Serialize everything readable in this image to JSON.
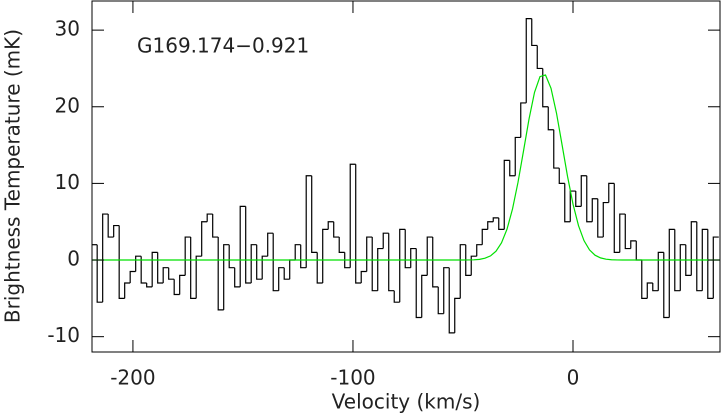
{
  "chart_data": {
    "type": "step",
    "annotation": "G169.174−0.921",
    "x_label": "Velocity (km/s)",
    "y_label": "Brightness Temperature (mK)",
    "xlim": [
      -218.6,
      66.8
    ],
    "ylim": [
      -12,
      33.8
    ],
    "xticks": [
      -200,
      -100,
      0
    ],
    "yticks": [
      -10,
      0,
      10,
      20,
      30
    ],
    "series": [
      {
        "type": "step",
        "color": "#000000",
        "x": [
          -217.5,
          -215,
          -212.5,
          -210,
          -207.5,
          -205,
          -202.5,
          -200,
          -197.5,
          -195,
          -192.5,
          -190,
          -187.5,
          -185,
          -182.5,
          -180,
          -177.5,
          -175,
          -172.5,
          -170,
          -167.5,
          -165,
          -162.5,
          -160,
          -157.5,
          -155,
          -152.5,
          -150,
          -147.5,
          -145,
          -142.5,
          -140,
          -137.5,
          -135,
          -132.5,
          -130,
          -127.5,
          -125,
          -122.5,
          -120,
          -117.5,
          -115,
          -112.5,
          -110,
          -107.5,
          -105,
          -102.5,
          -100,
          -97.5,
          -95,
          -92.5,
          -90,
          -87.5,
          -85,
          -82.5,
          -80,
          -77.5,
          -75,
          -72.5,
          -70,
          -67.5,
          -65,
          -62.5,
          -60,
          -57.5,
          -55,
          -52.5,
          -50,
          -47.5,
          -45,
          -42.5,
          -40,
          -37.5,
          -35,
          -32.5,
          -30,
          -27.5,
          -25,
          -22.5,
          -20,
          -17.5,
          -15,
          -12.5,
          -10,
          -7.5,
          -5,
          -2.5,
          0,
          2.5,
          5,
          7.5,
          10,
          12.5,
          15,
          17.5,
          20,
          22.5,
          25,
          27.5,
          30,
          32.5,
          35,
          37.5,
          40,
          42.5,
          45,
          47.5,
          50,
          52.5,
          55,
          57.5,
          60,
          62.5,
          65
        ],
        "values": [
          2,
          -5.5,
          6,
          3,
          4.5,
          -5,
          -3,
          -1.5,
          0.5,
          -3,
          -3.5,
          1,
          -3,
          -1,
          -2.5,
          -4.5,
          -2,
          3,
          -5,
          0.5,
          5,
          6,
          3,
          -6.5,
          2,
          -1,
          -3.5,
          7,
          -3,
          2,
          -2.5,
          0.5,
          3.5,
          -4,
          -1,
          -2.5,
          0,
          2,
          -1,
          11,
          1,
          -3,
          4,
          5,
          3,
          1,
          -1,
          12.5,
          -3,
          -1.5,
          3,
          -4,
          1.5,
          3.5,
          -4,
          -5.5,
          4,
          -1,
          1.5,
          -7.5,
          -2,
          3,
          -3.5,
          -7,
          -1,
          -9.5,
          -5,
          2,
          -2,
          0.5,
          2,
          4,
          5,
          5.5,
          4,
          13,
          11,
          16,
          20.5,
          31.5,
          28,
          25,
          20,
          17,
          12,
          10,
          5,
          9,
          7,
          11,
          5,
          8,
          3,
          7.5,
          10,
          1,
          6,
          1.5,
          2.5,
          0,
          -5,
          -3,
          -4,
          1,
          -7.5,
          4,
          -4,
          2,
          -2,
          5,
          -4,
          4,
          -5,
          3
        ]
      },
      {
        "type": "line",
        "color": "#00e000",
        "x": [
          -218.6,
          -50,
          -47.5,
          -45,
          -42.5,
          -40,
          -37.5,
          -35,
          -32.5,
          -30,
          -27.5,
          -25,
          -22.5,
          -20,
          -17.5,
          -15,
          -12.5,
          -10,
          -7.5,
          -5,
          -2.5,
          0,
          2.5,
          5,
          7.5,
          10,
          12.5,
          15,
          17.5,
          20,
          22.5,
          25,
          66.8
        ],
        "values": [
          0,
          0,
          0.01,
          0.03,
          0.09,
          0.24,
          0.54,
          1.15,
          2.24,
          4.02,
          6.66,
          10.14,
          14.23,
          18.39,
          21.87,
          23.94,
          24.14,
          22.41,
          19.16,
          15.08,
          10.93,
          7.29,
          4.48,
          2.53,
          1.32,
          0.63,
          0.28,
          0.11,
          0.04,
          0.01,
          0,
          0,
          0
        ]
      }
    ]
  }
}
